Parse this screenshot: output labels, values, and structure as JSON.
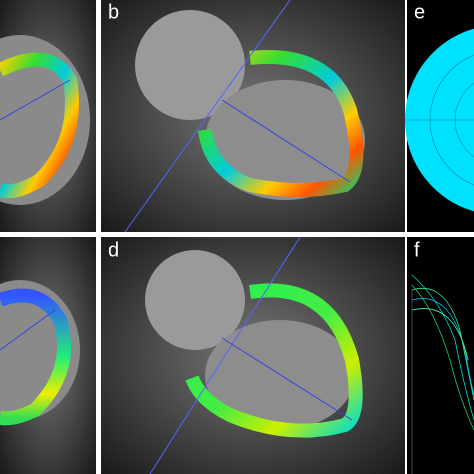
{
  "panels": [
    {
      "label": "b"
    },
    {
      "label": "d"
    },
    {
      "label": "e"
    },
    {
      "label": "f"
    }
  ]
}
